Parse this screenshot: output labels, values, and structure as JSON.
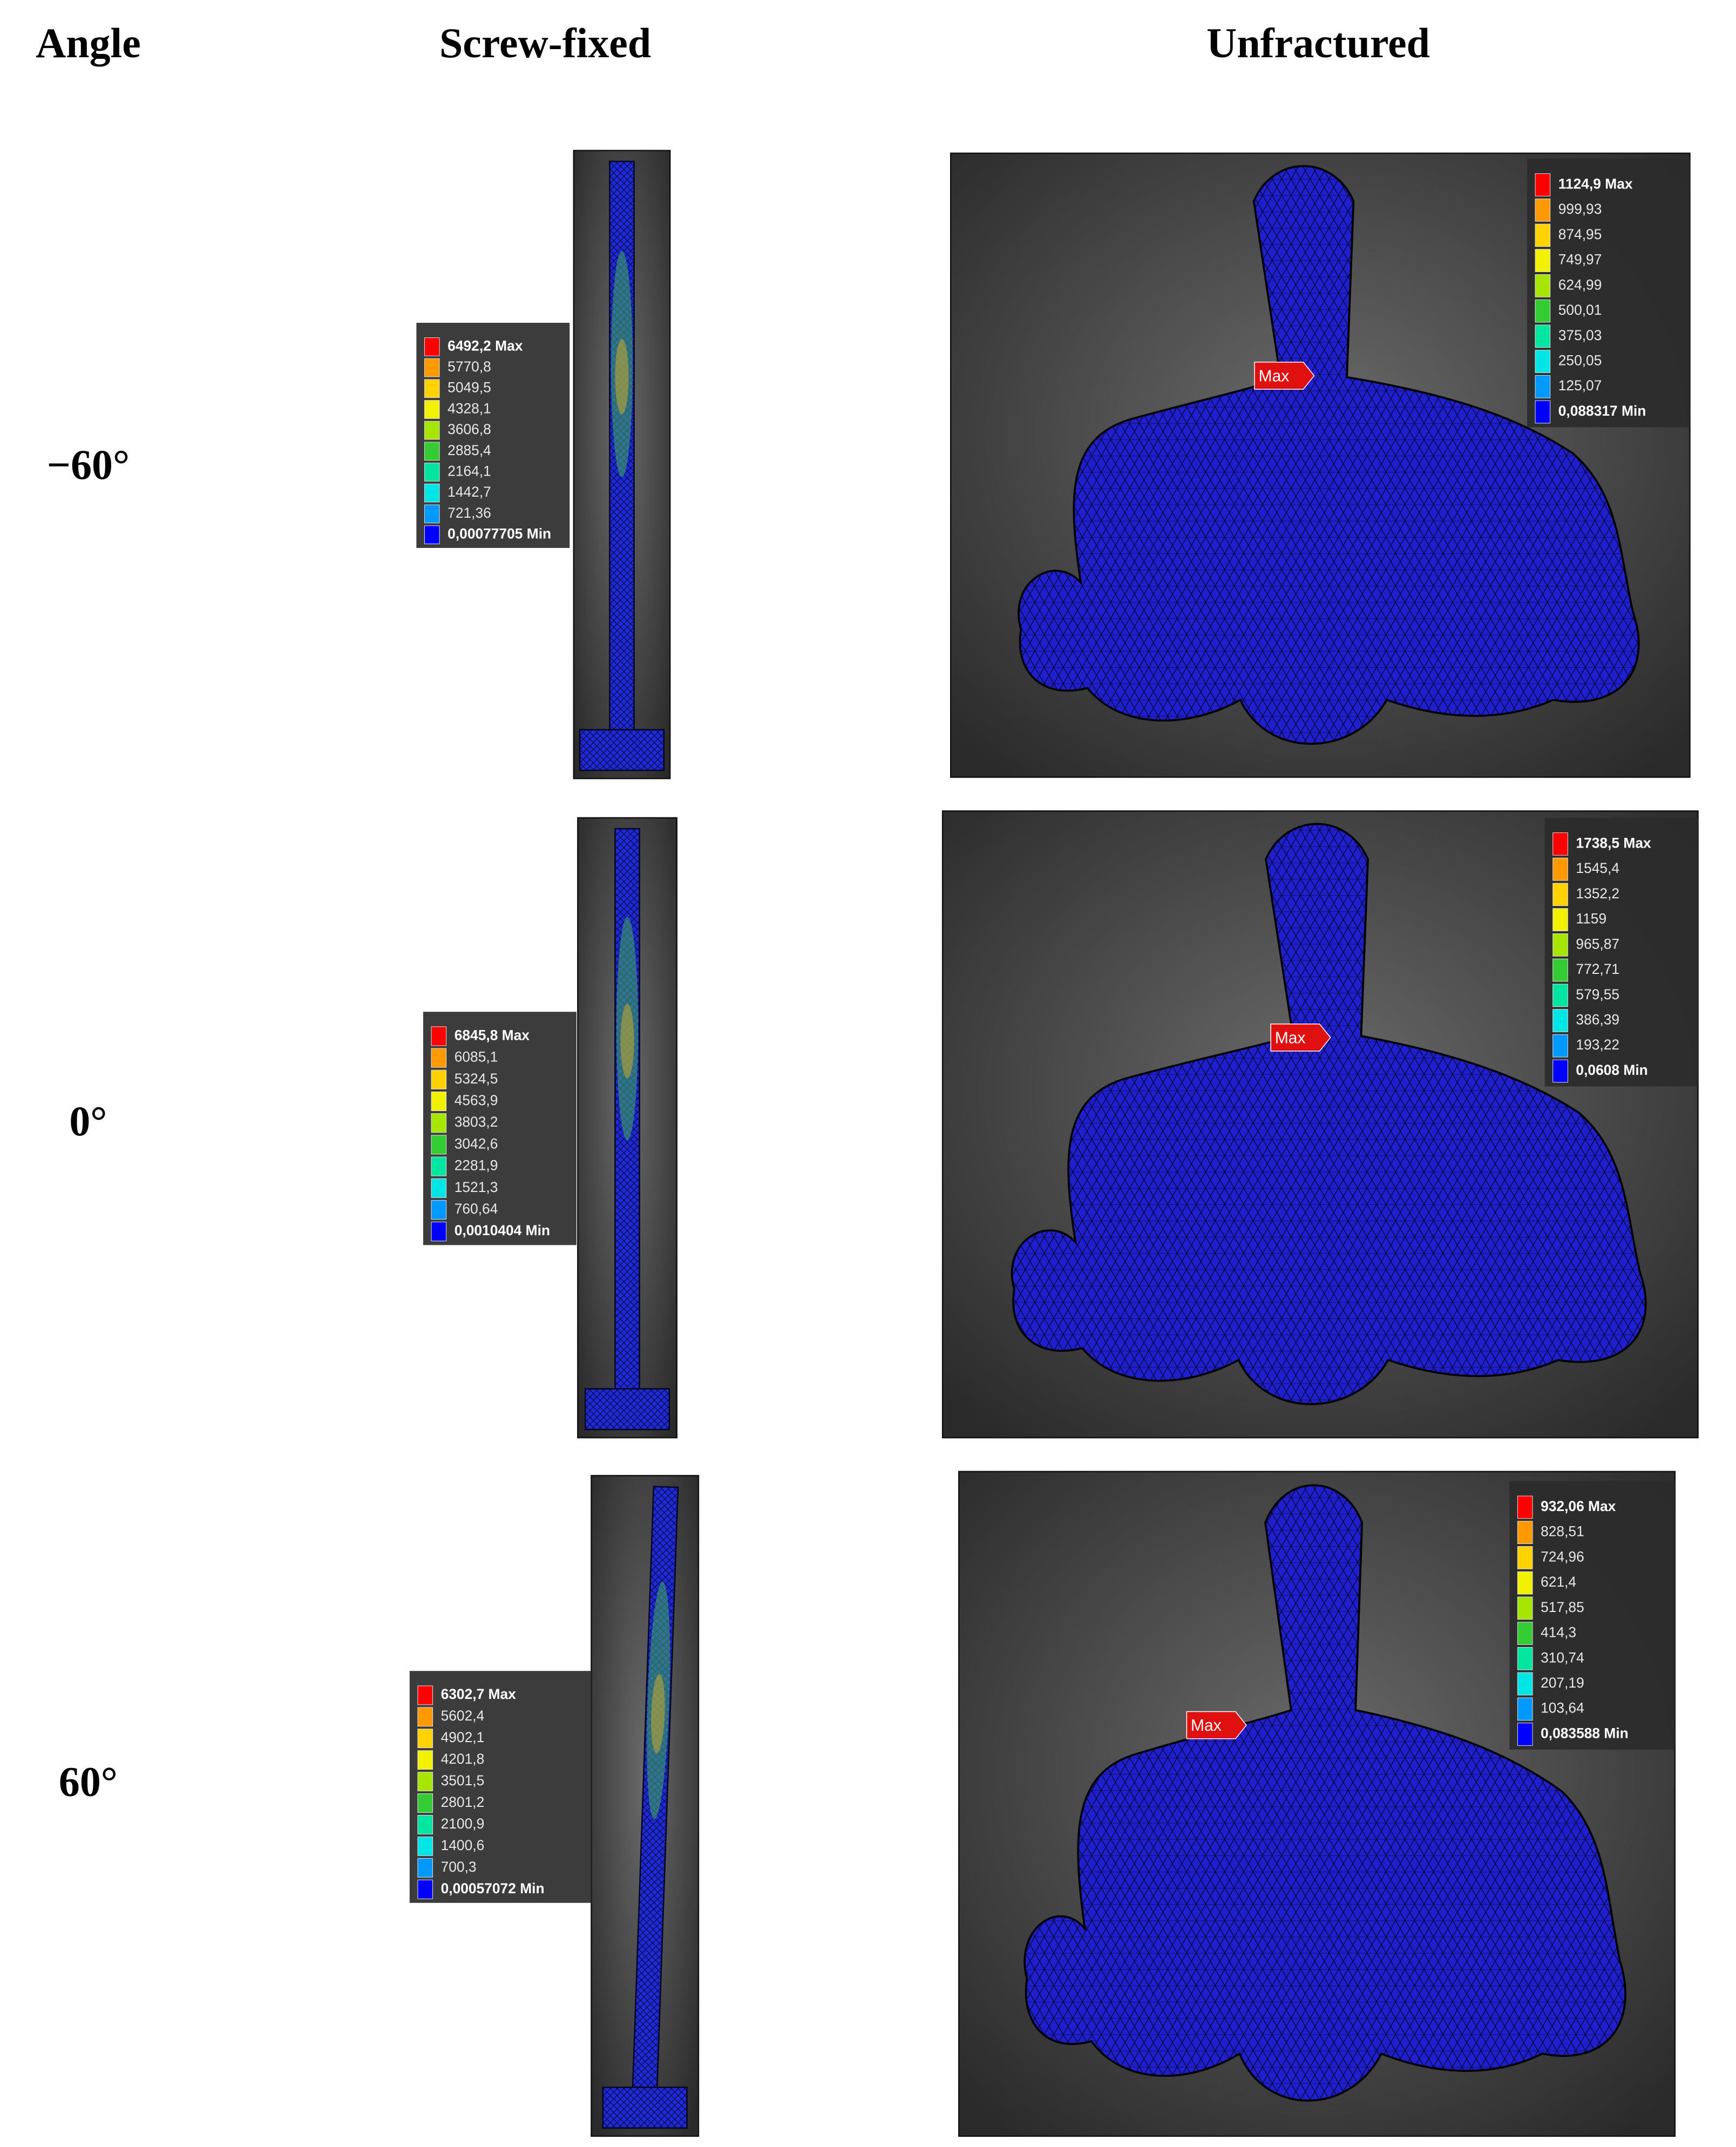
{
  "header": {
    "angle": "Angle",
    "screw_fixed": "Screw-fixed",
    "unfractured": "Unfractured"
  },
  "rows": [
    {
      "angle": "−60°",
      "screw_fixed": {
        "legend": [
          "6492,2 Max",
          "5770,8",
          "5049,5",
          "4328,1",
          "3606,8",
          "2885,4",
          "2164,1",
          "1442,7",
          "721,36",
          "0,00077705 Min"
        ]
      },
      "unfractured": {
        "legend": [
          "1124,9 Max",
          "999,93",
          "874,95",
          "749,97",
          "624,99",
          "500,01",
          "375,03",
          "250,05",
          "125,07",
          "0,088317 Min"
        ],
        "marker": "Max"
      }
    },
    {
      "angle": "0°",
      "screw_fixed": {
        "legend": [
          "6845,8 Max",
          "6085,1",
          "5324,5",
          "4563,9",
          "3803,2",
          "3042,6",
          "2281,9",
          "1521,3",
          "760,64",
          "0,0010404 Min"
        ]
      },
      "unfractured": {
        "legend": [
          "1738,5 Max",
          "1545,4",
          "1352,2",
          "1159",
          "965,87",
          "772,71",
          "579,55",
          "386,39",
          "193,22",
          "0,0608 Min"
        ],
        "marker": "Max"
      }
    },
    {
      "angle": "60°",
      "screw_fixed": {
        "legend": [
          "6302,7 Max",
          "5602,4",
          "4902,1",
          "4201,8",
          "3501,5",
          "2801,2",
          "2100,9",
          "1400,6",
          "700,3",
          "0,00057072 Min"
        ]
      },
      "unfractured": {
        "legend": [
          "932,06 Max",
          "828,51",
          "724,96",
          "621,4",
          "517,85",
          "414,3",
          "310,74",
          "207,19",
          "103,64",
          "0,083588 Min"
        ],
        "marker": "Max"
      }
    }
  ]
}
